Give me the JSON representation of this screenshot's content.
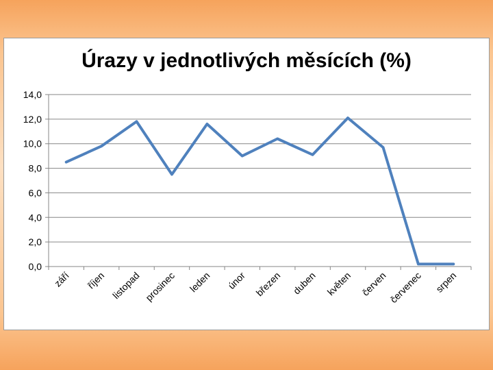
{
  "chart_data": {
    "type": "line",
    "title": "Úrazy v jednotlivých měsících (%)",
    "xlabel": "",
    "ylabel": "",
    "categories": [
      "září",
      "říjen",
      "listopad",
      "prosinec",
      "leden",
      "únor",
      "březen",
      "duben",
      "květen",
      "červen",
      "červenec",
      "srpen"
    ],
    "series": [
      {
        "values": [
          8.5,
          9.8,
          11.8,
          7.5,
          11.6,
          9.0,
          10.4,
          9.1,
          12.1,
          9.7,
          0.2,
          0.2
        ]
      }
    ],
    "ylim": [
      0,
      14
    ],
    "yticks": [
      "0,0",
      "2,0",
      "4,0",
      "6,0",
      "8,0",
      "10,0",
      "12,0",
      "14,0"
    ],
    "grid": true,
    "legend": "none",
    "colors": {
      "line": "#4f81bd",
      "grid": "#868686",
      "axis": "#868686"
    }
  }
}
